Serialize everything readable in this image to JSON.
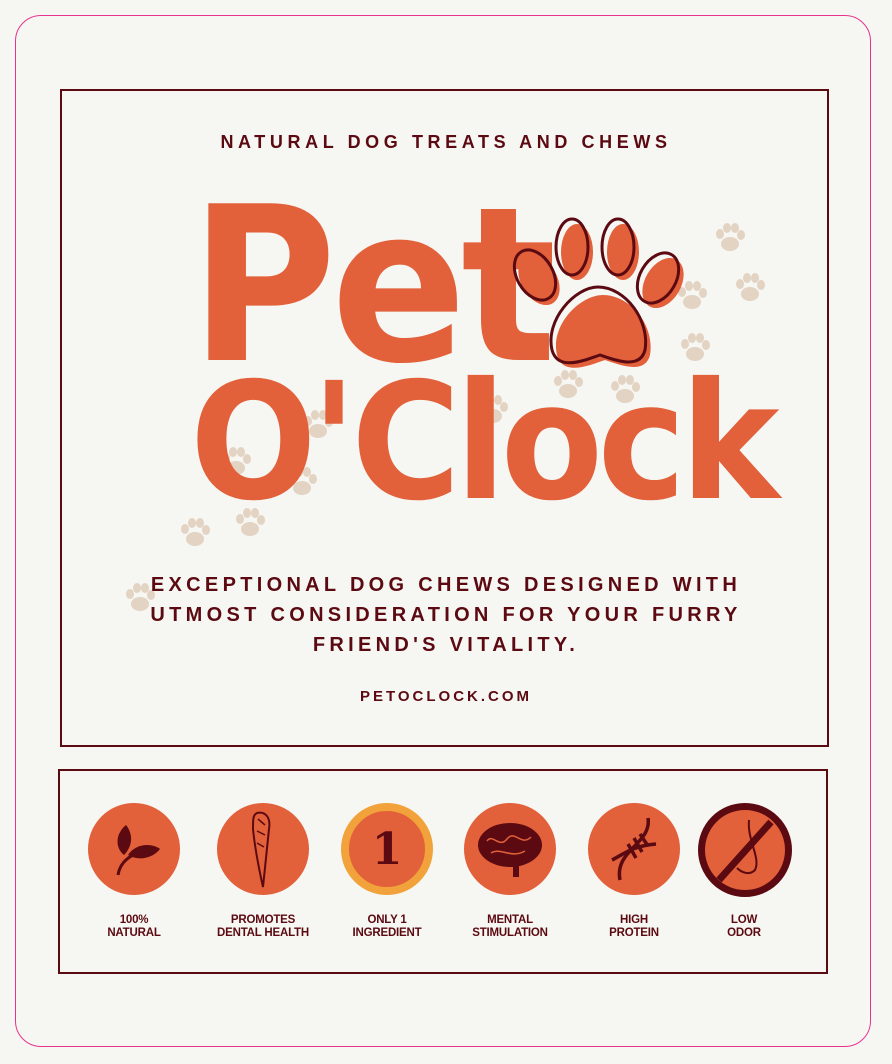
{
  "colors": {
    "accent": "#e2603a",
    "text": "#5c0a12",
    "background": "#f6f6f2",
    "paw_prints": "#e3d3c3",
    "badge_gold": "#f2a23a",
    "border": "#e8338c"
  },
  "header": {
    "subtitle": "NATURAL DOG TREATS AND CHEWS"
  },
  "logo": {
    "line1": "Pet",
    "line2": "O'Clock",
    "icon": "paw-print-icon"
  },
  "tagline": {
    "lines": [
      "EXCEPTIONAL DOG CHEWS DESIGNED WITH",
      "UTMOST CONSIDERATION FOR YOUR FURRY",
      "FRIEND'S VITALITY."
    ]
  },
  "website": "PETOCLOCK.COM",
  "features": [
    {
      "icon": "leaf-icon",
      "lines": [
        "100%",
        "NATURAL"
      ]
    },
    {
      "icon": "chew-stick-icon",
      "lines": [
        "PROMOTES",
        "DENTAL HEALTH"
      ]
    },
    {
      "icon": "number-one-badge-icon",
      "badge_text": "1",
      "lines": [
        "ONLY 1",
        "INGREDIENT"
      ]
    },
    {
      "icon": "brain-icon",
      "lines": [
        "MENTAL",
        "STIMULATION"
      ]
    },
    {
      "icon": "dna-icon",
      "lines": [
        "HIGH",
        "PROTEIN"
      ]
    },
    {
      "icon": "no-odor-icon",
      "lines": [
        "LOW",
        "ODOR"
      ]
    }
  ]
}
